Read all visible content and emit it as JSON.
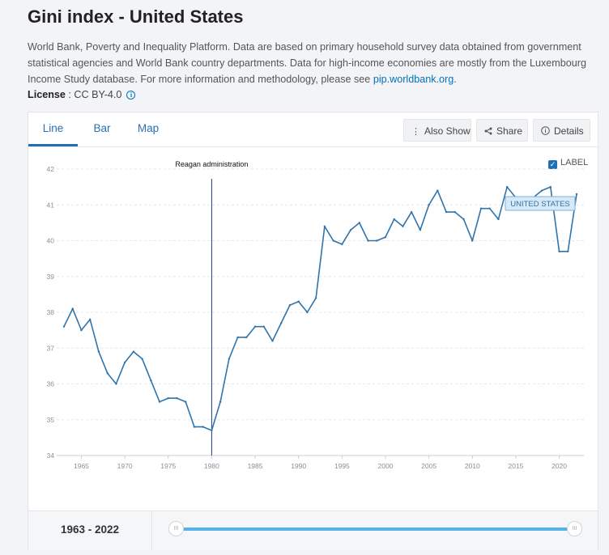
{
  "page": {
    "title": "Gini index - United States",
    "description_text": "World Bank, Poverty and Inequality Platform. Data are based on primary household survey data obtained from government statistical agencies and World Bank country departments. Data for high-income economies are mostly from the Luxembourg Income Study database. For more information and methodology, please see ",
    "description_link": "pip.worldbank.org",
    "description_end": ".",
    "license_label": "License",
    "license_value": " : CC BY-4.0"
  },
  "tabs": [
    {
      "label": "Line"
    },
    {
      "label": "Bar"
    },
    {
      "label": "Map"
    }
  ],
  "buttons": {
    "also_show": "Also Show",
    "share": "Share",
    "details": "Details"
  },
  "label_toggle": "LABEL",
  "footer": {
    "range_start": "1963",
    "range_sep": " - ",
    "range_end": "2022"
  },
  "colors": {
    "line": "#2f74ac",
    "annotation_line": "#1b3a8c",
    "accent": "#1f6fb2",
    "slider": "#55b2e6"
  },
  "chart_data": {
    "type": "line",
    "series": [
      {
        "name": "UNITED STATES",
        "x": [
          1963,
          1964,
          1965,
          1966,
          1967,
          1968,
          1969,
          1970,
          1971,
          1972,
          1973,
          1974,
          1975,
          1976,
          1977,
          1978,
          1979,
          1980,
          1981,
          1982,
          1983,
          1984,
          1985,
          1986,
          1987,
          1988,
          1989,
          1990,
          1991,
          1992,
          1993,
          1994,
          1995,
          1996,
          1997,
          1998,
          1999,
          2000,
          2001,
          2002,
          2003,
          2004,
          2005,
          2006,
          2007,
          2008,
          2009,
          2010,
          2011,
          2012,
          2013,
          2014,
          2015,
          2016,
          2017,
          2018,
          2019,
          2020,
          2021,
          2022
        ],
        "values": [
          37.6,
          38.1,
          37.5,
          37.8,
          36.9,
          36.3,
          36.0,
          36.6,
          36.9,
          36.7,
          36.1,
          35.5,
          35.6,
          35.6,
          35.5,
          34.8,
          34.8,
          34.7,
          35.5,
          36.7,
          37.3,
          37.3,
          37.6,
          37.6,
          37.2,
          37.7,
          38.2,
          38.3,
          38.0,
          38.4,
          40.4,
          40.0,
          39.9,
          40.3,
          40.5,
          40.0,
          40.0,
          40.1,
          40.6,
          40.4,
          40.8,
          40.3,
          41.0,
          41.4,
          40.8,
          40.8,
          40.6,
          40.0,
          40.9,
          40.9,
          40.6,
          41.5,
          41.2,
          41.1,
          41.2,
          41.4,
          41.5,
          39.7,
          39.7,
          41.3
        ]
      }
    ],
    "xticks": [
      "1965",
      "1970",
      "1975",
      "1980",
      "1985",
      "1990",
      "1995",
      "2000",
      "2005",
      "2010",
      "2015",
      "2020"
    ],
    "yticks": [
      "34",
      "35",
      "36",
      "37",
      "38",
      "39",
      "40",
      "41",
      "42"
    ],
    "ylim": [
      34,
      42
    ],
    "xlim": [
      1963,
      2022
    ],
    "grid": true,
    "annotation": {
      "label": "Reagan administration",
      "x": 1980
    },
    "series_label": "UNITED STATES"
  }
}
